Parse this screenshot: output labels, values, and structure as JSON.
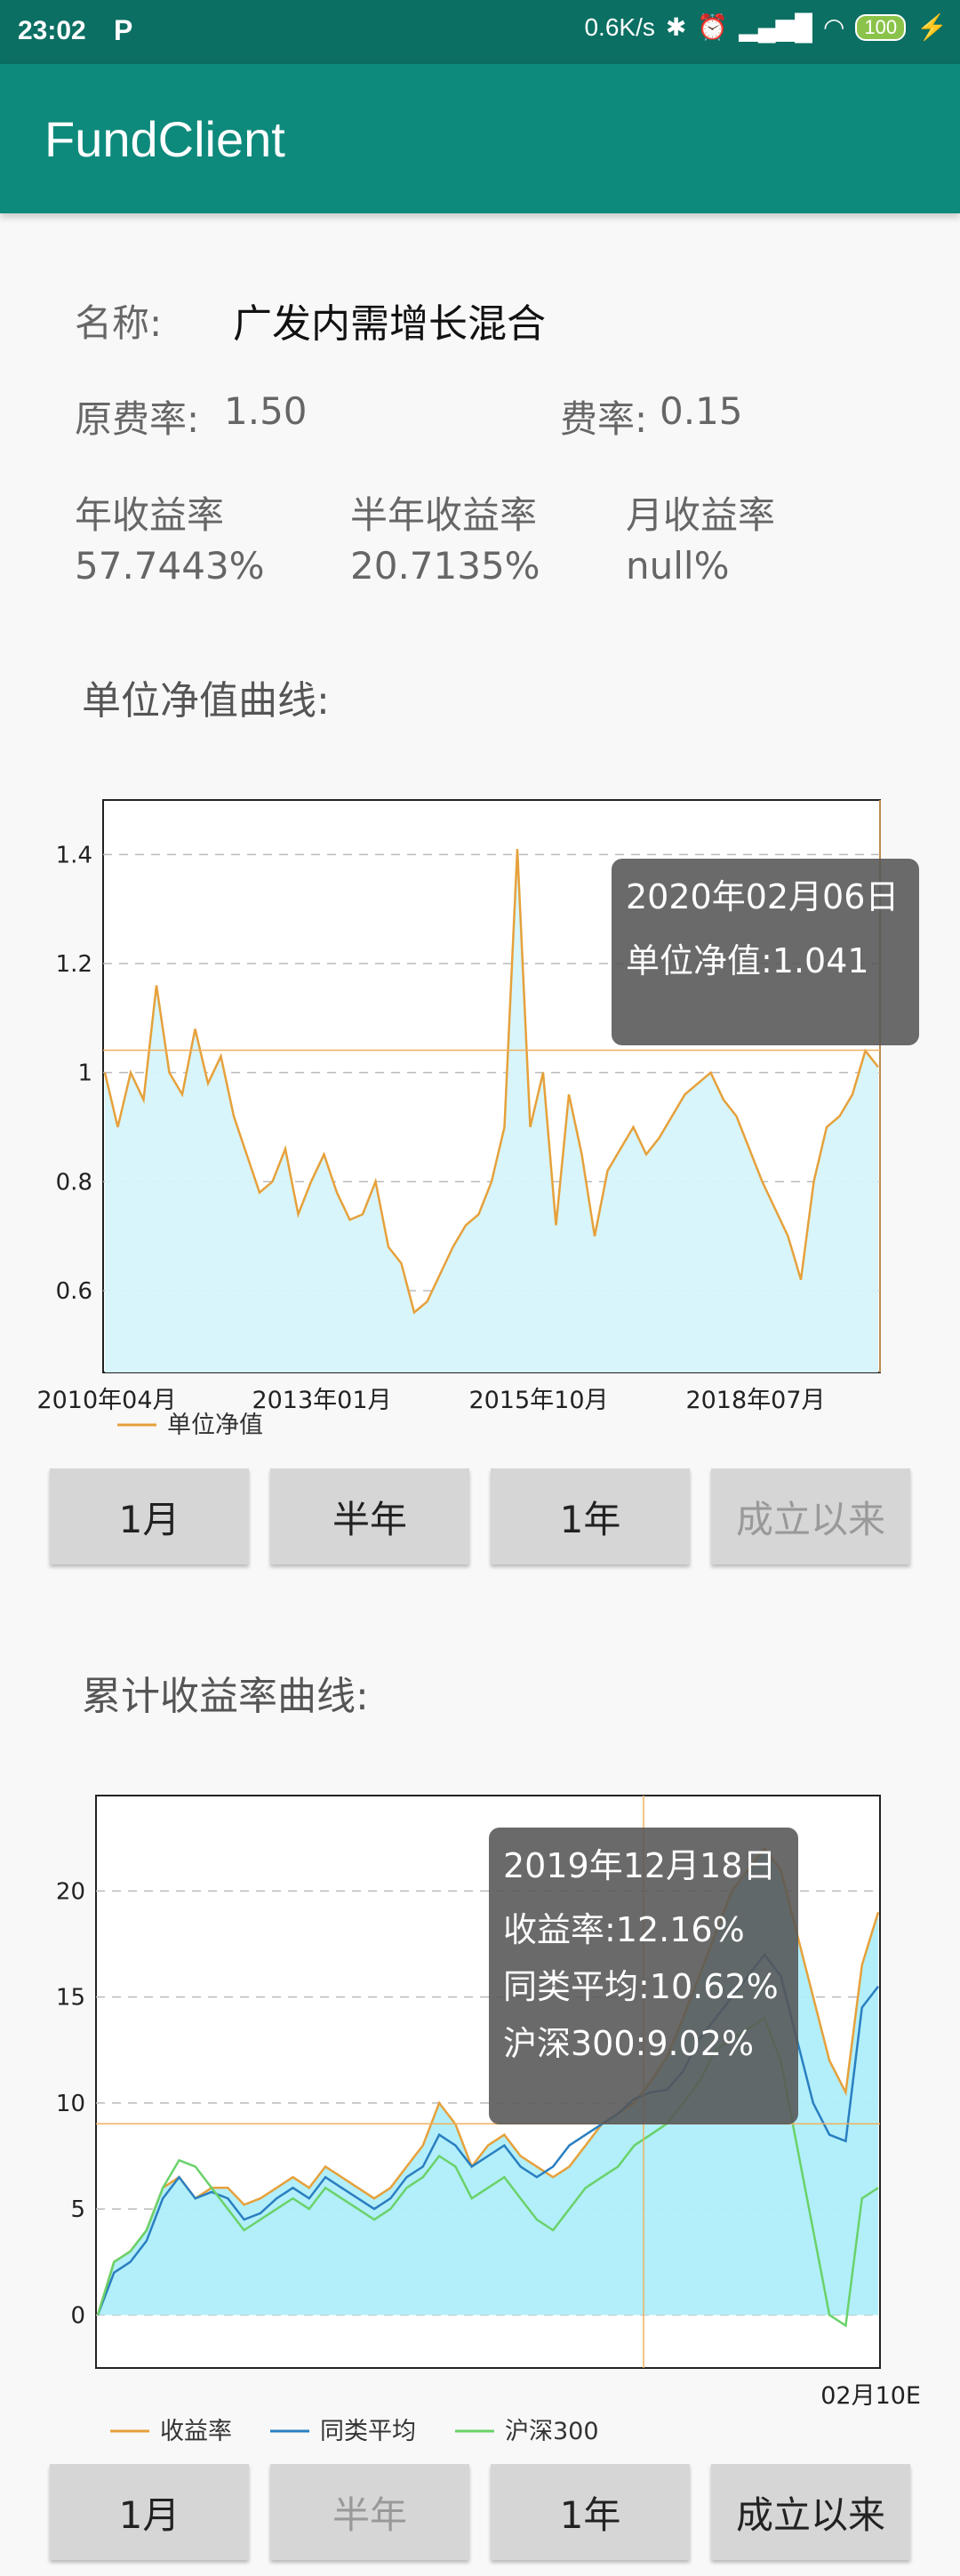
{
  "status": {
    "time": "23:02",
    "net": "0.6K/s",
    "battery": "100"
  },
  "app": {
    "title": "FundClient"
  },
  "fund": {
    "name_label": "名称:",
    "name": "广发内需增长混合",
    "orig_rate_label": "原费率:",
    "orig_rate": "1.50",
    "rate_label": "费率:",
    "rate": "0.15",
    "year_label": "年收益率",
    "year_val": "57.7443%",
    "half_label": "半年收益率",
    "half_val": "20.7135%",
    "month_label": "月收益率",
    "month_val": "null%"
  },
  "nav_section": {
    "title": "单位净值曲线:"
  },
  "return_section": {
    "title": "累计收益率曲线:"
  },
  "nav_buttons": [
    {
      "label": "1月",
      "disabled": false
    },
    {
      "label": "半年",
      "disabled": false
    },
    {
      "label": "1年",
      "disabled": false
    },
    {
      "label": "成立以来",
      "disabled": true
    }
  ],
  "return_buttons": [
    {
      "label": "1月",
      "disabled": false
    },
    {
      "label": "半年",
      "disabled": true
    },
    {
      "label": "1年",
      "disabled": false
    },
    {
      "label": "成立以来",
      "disabled": false
    }
  ],
  "chart_data": [
    {
      "type": "area",
      "title": "",
      "xlabels": [
        "2010年04月",
        "2013年01月",
        "2015年10月",
        "2018年07月"
      ],
      "yticks": [
        0.6,
        0.8,
        1.0,
        1.2,
        1.4
      ],
      "ylim": [
        0.45,
        1.5
      ],
      "grid": true,
      "legend": "bottom-left",
      "series": [
        {
          "name": "单位净值",
          "color": "#e6a13b",
          "fill": "#d6f4fb",
          "values": [
            1.0,
            0.9,
            1.0,
            0.95,
            1.16,
            1.0,
            0.96,
            1.08,
            0.98,
            1.03,
            0.92,
            0.85,
            0.78,
            0.8,
            0.86,
            0.74,
            0.8,
            0.85,
            0.78,
            0.73,
            0.74,
            0.8,
            0.68,
            0.65,
            0.56,
            0.58,
            0.63,
            0.68,
            0.72,
            0.74,
            0.8,
            0.9,
            1.41,
            0.9,
            1.0,
            0.72,
            0.96,
            0.85,
            0.7,
            0.82,
            0.86,
            0.9,
            0.85,
            0.88,
            0.92,
            0.96,
            0.98,
            1.0,
            0.95,
            0.92,
            0.86,
            0.8,
            0.75,
            0.7,
            0.62,
            0.8,
            0.9,
            0.92,
            0.96,
            1.04,
            1.01
          ]
        }
      ],
      "tooltip": {
        "date": "2020年02月06日",
        "text": "单位净值:1.041"
      },
      "crosshair_value": 1.041
    },
    {
      "type": "line",
      "title": "",
      "xlabels": [
        "02月10E"
      ],
      "yticks": [
        0,
        5,
        10,
        15,
        20
      ],
      "ylim": [
        -2.5,
        24.5
      ],
      "grid": true,
      "legend": "bottom-left",
      "series": [
        {
          "name": "收益率",
          "color": "#e6a13b",
          "fill": "#aeeefa",
          "values": [
            0,
            2.5,
            3,
            4,
            6,
            6.5,
            5.5,
            6,
            6,
            5.2,
            5.5,
            6,
            6.5,
            6,
            7,
            6.5,
            6,
            5.5,
            6,
            7,
            8,
            10,
            9,
            7,
            8,
            8.5,
            7.5,
            7,
            6.5,
            7,
            8,
            9,
            9.5,
            10,
            11,
            12.16,
            14,
            16,
            18,
            20,
            21,
            22,
            21,
            18,
            15,
            12,
            10.5,
            16.5,
            19
          ]
        },
        {
          "name": "同类平均",
          "color": "#2a7fc0",
          "values": [
            0,
            2,
            2.5,
            3.5,
            5.5,
            6.5,
            5.5,
            5.8,
            5.5,
            4.5,
            4.8,
            5.5,
            6,
            5.5,
            6.5,
            6,
            5.5,
            5,
            5.5,
            6.5,
            7,
            8.5,
            8,
            7,
            7.5,
            8,
            7,
            6.5,
            7,
            8,
            8.5,
            9,
            9.5,
            10.2,
            10.5,
            10.62,
            11.5,
            13,
            14,
            15,
            16,
            17,
            16,
            13,
            10,
            8.5,
            8.2,
            14.5,
            15.5
          ]
        },
        {
          "name": "沪深300",
          "color": "#6ad26a",
          "values": [
            0,
            2.5,
            3,
            4,
            6,
            7.3,
            7,
            6,
            5,
            4,
            4.5,
            5,
            5.5,
            5,
            6,
            5.5,
            5,
            4.5,
            5,
            6,
            6.5,
            7.5,
            7,
            5.5,
            6,
            6.5,
            5.5,
            4.5,
            4,
            5,
            6,
            6.5,
            7,
            8,
            8.5,
            9.02,
            10,
            11,
            12.5,
            13,
            13.5,
            14,
            12,
            8,
            4,
            0,
            -0.5,
            5.5,
            6
          ]
        }
      ],
      "tooltip": {
        "date": "2019年12月18日",
        "lines": [
          "收益率:12.16%",
          "同类平均:10.62%",
          "沪深300:9.02%"
        ]
      },
      "crosshair_value": 9.02
    }
  ]
}
